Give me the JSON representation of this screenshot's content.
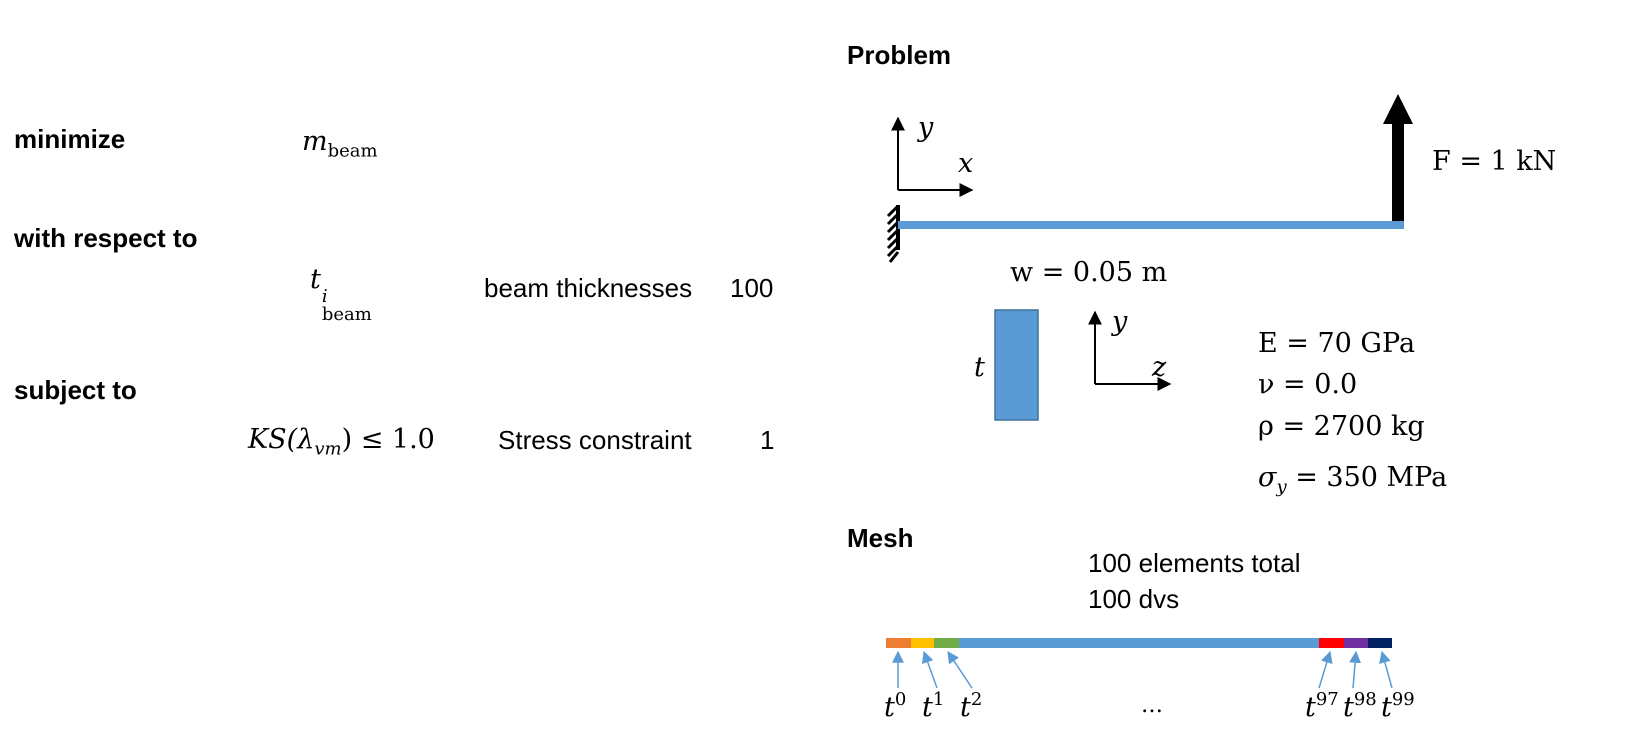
{
  "formulation": {
    "minimize_label": "minimize",
    "objective": {
      "symbol": "m",
      "subscript": "beam"
    },
    "wrt_label": "with respect to",
    "design_var": {
      "symbol": "t",
      "superscript": "i",
      "subscript": "beam",
      "description": "beam thicknesses",
      "count": "100"
    },
    "subject_label": "subject to",
    "constraint": {
      "expression_prefix": "KS(",
      "lambda": "λ",
      "lambda_sub": "vm",
      "expression_suffix": ") ≤ 1.0",
      "description": "Stress constraint",
      "count": "1"
    }
  },
  "problem": {
    "title": "Problem",
    "axis_y": "y",
    "axis_x": "x",
    "axis_z": "z",
    "force": "F = 1 kN",
    "width_label": "w = 0.05 m",
    "thickness_label": "t",
    "materials": [
      "E = 70 GPa",
      "ν = 0.0",
      "ρ = 2700 kg"
    ],
    "yield": {
      "symbol": "σ",
      "subscript": "y",
      "value": " = 350 MPa"
    },
    "beam_color": "#5b9bd5",
    "force_color": "#000000"
  },
  "mesh": {
    "title": "Mesh",
    "elements_text": "100 elements total",
    "dvs_text": "100 dvs",
    "ellipsis": "…",
    "labels": [
      {
        "base": "t",
        "sup": "0"
      },
      {
        "base": "t",
        "sup": "1"
      },
      {
        "base": "t",
        "sup": "2"
      },
      {
        "base": "t",
        "sup": "97"
      },
      {
        "base": "t",
        "sup": "98"
      },
      {
        "base": "t",
        "sup": "99"
      }
    ],
    "segment_colors": [
      "#ed7d31",
      "#ffc000",
      "#70ad47",
      "#5b9bd5",
      "#ff0000",
      "#7030a0",
      "#002060"
    ]
  }
}
